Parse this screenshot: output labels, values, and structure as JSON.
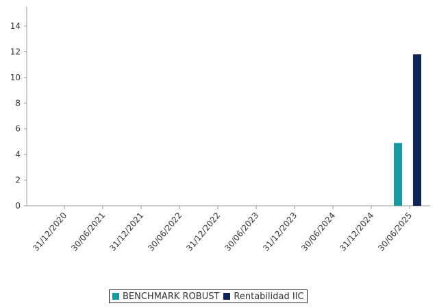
{
  "chart_data": {
    "type": "bar",
    "categories": [
      "31/12/2020",
      "30/06/2021",
      "31/12/2021",
      "30/06/2022",
      "31/12/2022",
      "30/06/2023",
      "31/12/2023",
      "30/06/2024",
      "31/12/2024",
      "30/06/2025"
    ],
    "series": [
      {
        "name": "BENCHMARK ROBUST",
        "color": "#1a9aa0",
        "values": [
          null,
          null,
          null,
          null,
          null,
          null,
          null,
          null,
          null,
          4.9
        ]
      },
      {
        "name": "Rentabilidad IIC",
        "color": "#0d2550",
        "values": [
          null,
          null,
          null,
          null,
          null,
          null,
          null,
          null,
          null,
          11.8
        ]
      }
    ],
    "yticks": [
      0,
      2,
      4,
      6,
      8,
      10,
      12,
      14
    ],
    "ylim": [
      0,
      15.5
    ],
    "grid": false,
    "legend_position": "bottom-center"
  }
}
